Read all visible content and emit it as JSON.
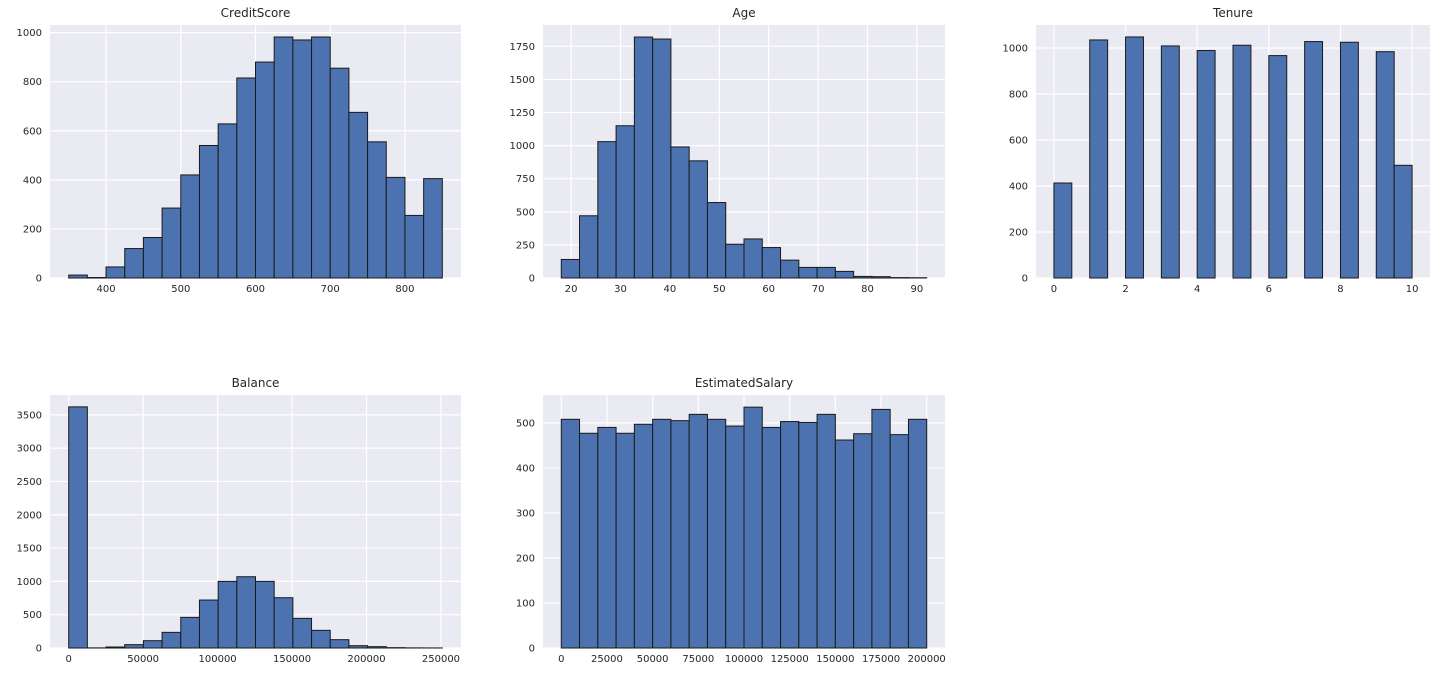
{
  "figure": {
    "background": "#ffffff",
    "axes_background": "#eaeaf2",
    "grid_color": "#ffffff",
    "bar_fill": "#4c72b0",
    "bar_edge": "#1a1a1a",
    "tick_color": "#262626",
    "title_color": "#262626"
  },
  "chart_data": [
    {
      "type": "bar",
      "subtype": "histogram",
      "title": "CreditScore",
      "xlabel": "",
      "ylabel": "",
      "bin_start": 350,
      "bin_width": 25,
      "values": [
        12,
        2,
        45,
        120,
        165,
        285,
        420,
        540,
        628,
        815,
        880,
        982,
        970,
        982,
        855,
        675,
        555,
        410,
        255,
        405
      ],
      "xlim": [
        325,
        875
      ],
      "ylim": [
        0,
        1031
      ],
      "xticks": [
        400,
        500,
        600,
        700,
        800
      ],
      "yticks": [
        0,
        200,
        400,
        600,
        800,
        1000
      ],
      "grid": true,
      "legend": "none"
    },
    {
      "type": "bar",
      "subtype": "histogram",
      "title": "Age",
      "xlabel": "",
      "ylabel": "",
      "bin_start": 18,
      "bin_width": 3.7,
      "values": [
        140,
        470,
        1030,
        1150,
        1820,
        1805,
        990,
        885,
        570,
        255,
        295,
        230,
        135,
        80,
        80,
        50,
        12,
        10,
        3,
        2
      ],
      "xlim": [
        14.3,
        95.7
      ],
      "ylim": [
        0,
        1911
      ],
      "xticks": [
        20,
        30,
        40,
        50,
        60,
        70,
        80,
        90
      ],
      "yticks": [
        0,
        250,
        500,
        750,
        1000,
        1250,
        1500,
        1750
      ],
      "grid": true,
      "legend": "none"
    },
    {
      "type": "bar",
      "subtype": "histogram",
      "title": "Tenure",
      "xlabel": "",
      "ylabel": "",
      "bin_start": 0,
      "bin_width": 0.5,
      "values": [
        413,
        0,
        1035,
        0,
        1048,
        0,
        1009,
        0,
        989,
        0,
        1012,
        0,
        967,
        0,
        1028,
        0,
        1025,
        0,
        984,
        490
      ],
      "xlim": [
        -0.5,
        10.5
      ],
      "ylim": [
        0,
        1100
      ],
      "xticks": [
        0,
        2,
        4,
        6,
        8,
        10
      ],
      "yticks": [
        0,
        200,
        400,
        600,
        800,
        1000
      ],
      "grid": true,
      "legend": "none"
    },
    {
      "type": "bar",
      "subtype": "histogram",
      "title": "Balance",
      "xlabel": "",
      "ylabel": "",
      "bin_start": 0,
      "bin_width": 12545,
      "values": [
        3620,
        2,
        15,
        50,
        110,
        235,
        460,
        720,
        1000,
        1070,
        1000,
        755,
        445,
        265,
        125,
        35,
        20,
        5,
        2,
        1
      ],
      "xlim": [
        -12545,
        263443
      ],
      "ylim": [
        0,
        3798
      ],
      "xticks": [
        0,
        50000,
        100000,
        150000,
        200000,
        250000
      ],
      "yticks": [
        0,
        500,
        1000,
        1500,
        2000,
        2500,
        3000,
        3500
      ],
      "grid": true,
      "legend": "none"
    },
    {
      "type": "bar",
      "subtype": "histogram",
      "title": "EstimatedSalary",
      "xlabel": "",
      "ylabel": "",
      "bin_start": 0,
      "bin_width": 10000,
      "values": [
        508,
        477,
        490,
        477,
        497,
        508,
        505,
        519,
        508,
        493,
        535,
        490,
        503,
        501,
        519,
        462,
        476,
        530,
        474,
        508
      ],
      "xlim": [
        -10000,
        210000
      ],
      "ylim": [
        0,
        562
      ],
      "xticks": [
        0,
        25000,
        50000,
        75000,
        100000,
        125000,
        150000,
        175000,
        200000
      ],
      "yticks": [
        0,
        100,
        200,
        300,
        400,
        500
      ],
      "grid": true,
      "legend": "none"
    }
  ]
}
